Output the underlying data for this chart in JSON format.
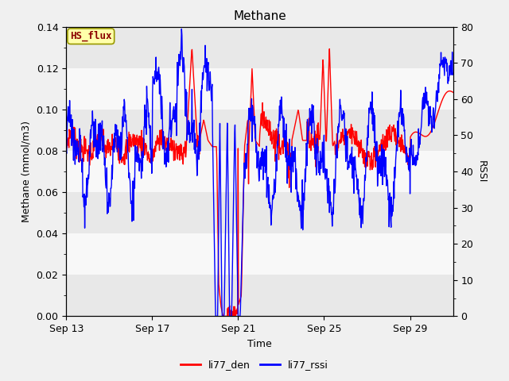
{
  "title": "Methane",
  "xlabel": "Time",
  "ylabel_left": "Methane (mmol/m3)",
  "ylabel_right": "RSSI",
  "hs_flux_label": "HS_flux",
  "legend_entries": [
    "li77_den",
    "li77_rssi"
  ],
  "legend_colors": [
    "red",
    "blue"
  ],
  "ylim_left": [
    0.0,
    0.14
  ],
  "ylim_right": [
    0,
    80
  ],
  "yticks_left": [
    0.0,
    0.02,
    0.04,
    0.06,
    0.08,
    0.1,
    0.12,
    0.14
  ],
  "yticks_right": [
    0,
    10,
    20,
    30,
    40,
    50,
    60,
    70,
    80
  ],
  "xtick_labels": [
    "Sep 13",
    "Sep 17",
    "Sep 21",
    "Sep 25",
    "Sep 29"
  ],
  "xlim": [
    0,
    18
  ],
  "xtick_pos": [
    0,
    4,
    8,
    12,
    16
  ],
  "band_colors": [
    "#e8e8e8",
    "#f8f8f8"
  ],
  "band_edges": [
    0.0,
    0.02,
    0.04,
    0.06,
    0.08,
    0.1,
    0.12,
    0.14
  ],
  "fig_facecolor": "#f0f0f0",
  "line_width": 1.0,
  "title_fontsize": 11,
  "label_fontsize": 9,
  "tick_fontsize": 9
}
